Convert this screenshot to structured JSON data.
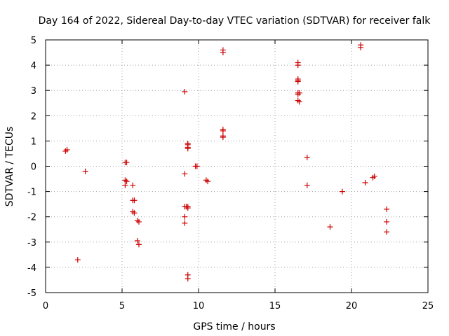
{
  "chart_data": {
    "type": "scatter",
    "title": "Day 164 of 2022, Sidereal Day-to-day VTEC variation (SDTVAR) for receiver falk",
    "xlabel": "GPS time / hours",
    "ylabel": "SDTVAR / TECUs",
    "xlim": [
      0,
      25
    ],
    "ylim": [
      -5,
      5
    ],
    "xticks": [
      0,
      5,
      10,
      15,
      20,
      25
    ],
    "yticks": [
      -5,
      -4,
      -3,
      -2,
      -1,
      0,
      1,
      2,
      3,
      4,
      5
    ],
    "xtick_labels": [
      "0",
      "5",
      "10",
      "15",
      "20",
      "25"
    ],
    "ytick_labels": [
      "-5",
      "-4",
      "-3",
      "-2",
      "-1",
      "0",
      "1",
      "2",
      "3",
      "4",
      "5"
    ],
    "grid": true,
    "legend": "none",
    "marker_color": "#cc0000",
    "series": [
      {
        "name": "SDTVAR",
        "marker": "+",
        "x": [
          1.3,
          1.4,
          2.1,
          2.6,
          5.2,
          5.3,
          5.2,
          5.3,
          5.2,
          5.7,
          5.7,
          5.8,
          5.7,
          5.8,
          6.0,
          6.1,
          6.0,
          6.1,
          9.1,
          9.1,
          9.1,
          9.1,
          9.1,
          9.2,
          9.3,
          9.3,
          9.3,
          9.3,
          9.3,
          9.3,
          9.3,
          9.3,
          9.8,
          9.9,
          10.5,
          10.6,
          11.6,
          11.6,
          11.6,
          11.6,
          11.6,
          11.6,
          16.5,
          16.5,
          16.5,
          16.5,
          16.5,
          16.5,
          16.5,
          16.6,
          16.5,
          16.6,
          17.1,
          17.1,
          18.6,
          19.4,
          20.6,
          20.6,
          20.9,
          21.4,
          21.5,
          22.3,
          22.3,
          22.3
        ],
        "y": [
          0.6,
          0.65,
          -3.7,
          -0.2,
          0.15,
          0.15,
          -0.55,
          -0.6,
          -0.75,
          -0.75,
          -1.35,
          -1.35,
          -1.8,
          -1.85,
          -2.15,
          -2.2,
          -2.95,
          -3.1,
          2.95,
          -0.3,
          -1.6,
          -2.0,
          -2.25,
          -1.6,
          -1.65,
          -4.3,
          -4.45,
          0.9,
          0.75,
          0.7,
          0.85,
          -1.6,
          0.0,
          0.0,
          -0.55,
          -0.6,
          4.6,
          4.5,
          1.45,
          1.4,
          1.2,
          1.15,
          4.1,
          4.0,
          3.45,
          3.4,
          3.35,
          2.9,
          2.85,
          2.9,
          2.6,
          2.55,
          0.35,
          -0.75,
          -2.4,
          -1.0,
          4.8,
          4.7,
          -0.65,
          -0.45,
          -0.4,
          -1.7,
          -2.2,
          -2.6
        ]
      }
    ]
  }
}
